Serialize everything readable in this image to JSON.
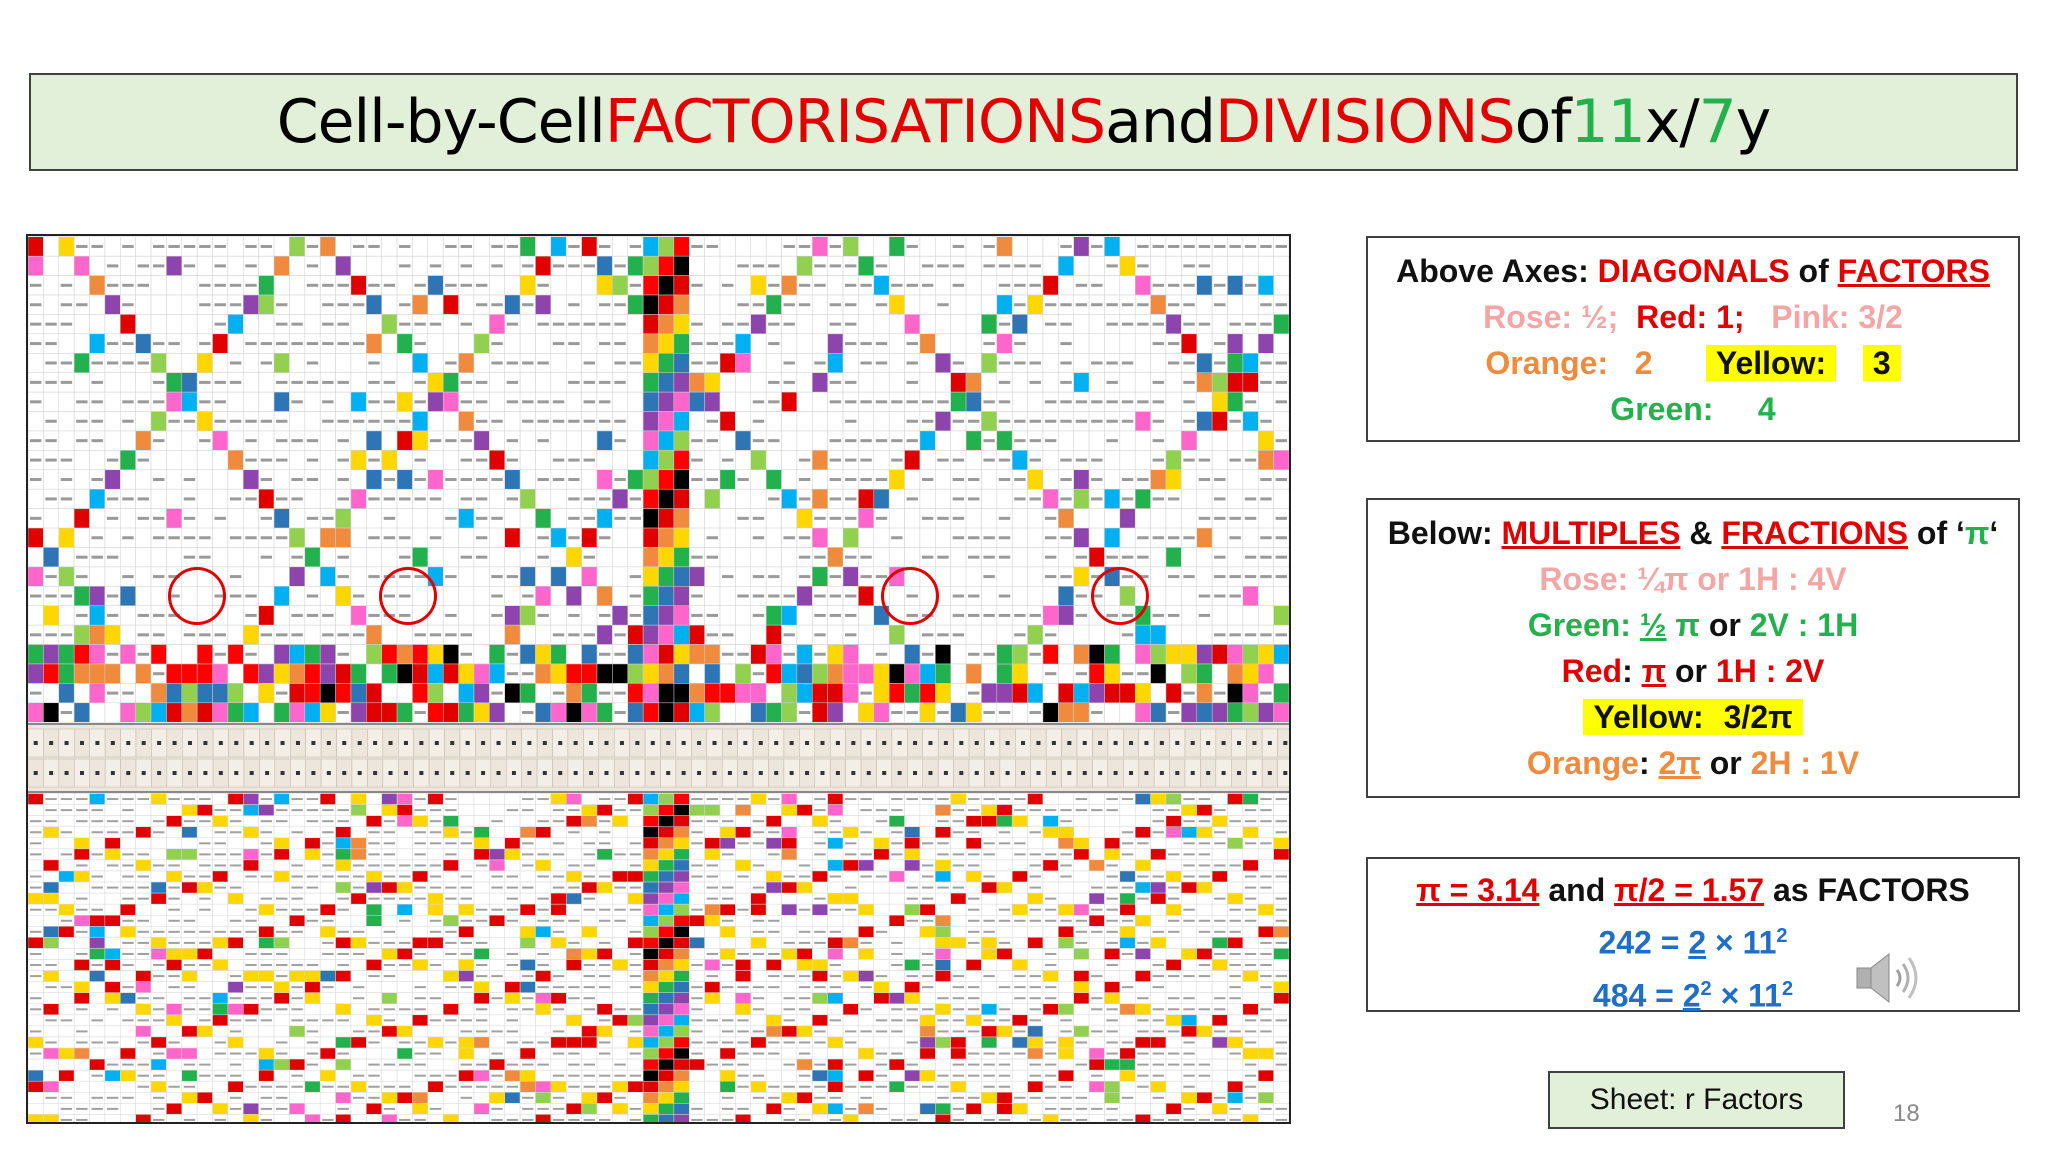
{
  "title": {
    "part1": "Cell-by-Cell ",
    "part2": "FACTORISATIONS",
    "part3": " and ",
    "part4": "DIVISIONS",
    "part5": " of ",
    "part6": "11",
    "part7": "x/",
    "part8": "7",
    "part9": "y"
  },
  "box1": {
    "label_a": "Above Axes: ",
    "label_b": "DIAGONALS",
    "label_c": " of ",
    "label_d": "FACTORS",
    "rose": "Rose: ½;",
    "red": "Red: 1;",
    "pink": "Pink: 3/2",
    "orange_label": "Orange:   2",
    "yellow_label": "Yellow:",
    "yellow_value": "3",
    "green_label": "Green:     4"
  },
  "box2": {
    "label_a": "Below: ",
    "label_b": "MULTIPLES",
    "label_c": " & ",
    "label_d": "FRACTIONS",
    "label_e": " of ‘",
    "label_f": "π",
    "label_g": "‘",
    "rose_line": "Rose: ¼π or 1H : 4V",
    "green_a": "Green: ",
    "green_b": "½",
    "green_c": " π",
    "green_d": " or ",
    "green_e": "2V : 1H",
    "red_a": "Red",
    "red_b": ": ",
    "red_c": "π",
    "red_d": " or ",
    "red_e": "1H : 2V",
    "yellow_a": "Yellow:",
    "yellow_b": "3/2π",
    "orange_a": "Orange",
    "orange_b": ": ",
    "orange_c": "2π",
    "orange_d": " or ",
    "orange_e": "2H : 1V"
  },
  "box3": {
    "pi_a": "π = 3.14",
    "pi_b": " and ",
    "pi_c": "π/2 = 1.57",
    "pi_d": " as FACTORS",
    "eq1_a": "242 = ",
    "eq1_b": "2",
    "eq1_c": " × 11",
    "eq1_sup": "2",
    "eq2_a": "484 = ",
    "eq2_b": "2",
    "eq2_b_sup": "2",
    "eq2_c": " × 11",
    "eq2_sup": "2"
  },
  "sheet_label": "Sheet: r Factors",
  "page_number": "18",
  "icons": [
    "speaker-icon"
  ],
  "colors": {
    "title_bg": "#e2f0d9",
    "accent_red": "#e00000",
    "accent_green": "#22b14c",
    "blue": "#1f6fc6",
    "highlight_yellow": "#ffff00"
  }
}
